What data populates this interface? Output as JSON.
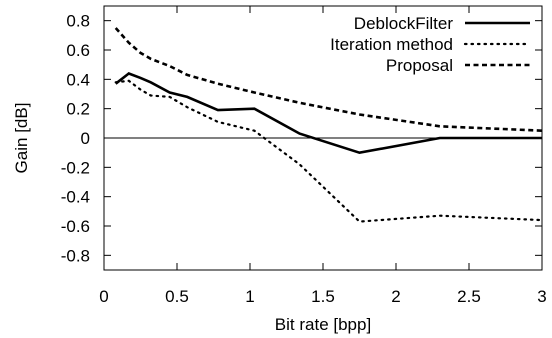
{
  "chart_data": {
    "type": "line",
    "xlabel": "Bit rate [bpp]",
    "ylabel": "Gain [dB]",
    "xlim": [
      0,
      3
    ],
    "ylim": [
      -0.9,
      0.9
    ],
    "xticks": [
      0,
      0.5,
      1,
      1.5,
      2,
      2.5,
      3
    ],
    "xtick_labels": [
      "0",
      "0.5",
      "1",
      "1.5",
      "2",
      "2.5",
      "3"
    ],
    "yticks": [
      0.8,
      0.6,
      0.4,
      0.2,
      0,
      -0.2,
      -0.4,
      -0.6,
      -0.8
    ],
    "ytick_labels": [
      "0.8",
      "0.6",
      "0.4",
      "0.2",
      "0",
      "-0.2",
      "-0.4",
      "-0.6",
      "-0.8"
    ],
    "grid": false,
    "zero_line": true,
    "legend": "top-right",
    "series": [
      {
        "name": "DeblockFilter",
        "style": "solid",
        "x": [
          0.08,
          0.17,
          0.25,
          0.32,
          0.45,
          0.57,
          0.78,
          1.03,
          1.34,
          1.75,
          2.3,
          3.0
        ],
        "y": [
          0.37,
          0.44,
          0.41,
          0.38,
          0.31,
          0.28,
          0.19,
          0.2,
          0.03,
          -0.1,
          0.0,
          0.0
        ]
      },
      {
        "name": "Iteration method",
        "style": "dotted",
        "x": [
          0.08,
          0.17,
          0.25,
          0.32,
          0.45,
          0.57,
          0.78,
          1.03,
          1.34,
          1.75,
          2.3,
          3.0
        ],
        "y": [
          0.38,
          0.39,
          0.33,
          0.29,
          0.28,
          0.21,
          0.11,
          0.05,
          -0.18,
          -0.57,
          -0.53,
          -0.56
        ]
      },
      {
        "name": "Proposal",
        "style": "dashed",
        "x": [
          0.08,
          0.17,
          0.25,
          0.32,
          0.45,
          0.57,
          0.78,
          1.03,
          1.34,
          1.75,
          2.3,
          3.0
        ],
        "y": [
          0.75,
          0.65,
          0.58,
          0.54,
          0.49,
          0.43,
          0.37,
          0.31,
          0.24,
          0.16,
          0.08,
          0.05
        ]
      }
    ]
  }
}
